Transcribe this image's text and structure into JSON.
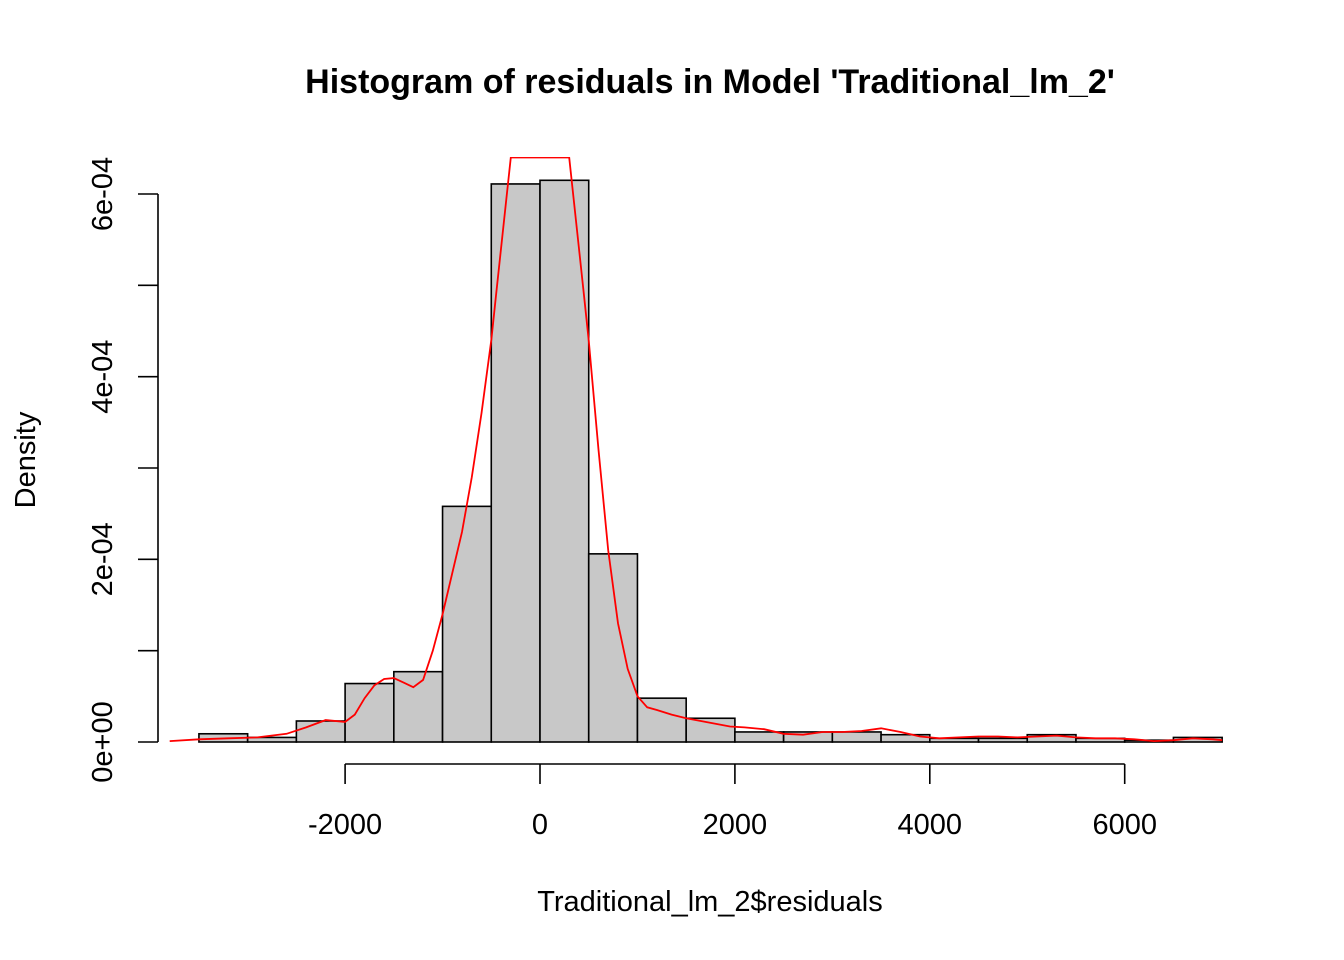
{
  "chart_data": {
    "type": "bar",
    "title": "Histogram of residuals in Model 'Traditional_lm_2'",
    "xlabel": "Traditional_lm_2$residuals",
    "ylabel": "Density",
    "xlim": [
      -3500,
      7000
    ],
    "ylim": [
      0,
      0.00066
    ],
    "x_ticks": [
      -2000,
      0,
      2000,
      4000,
      6000
    ],
    "x_tick_labels": [
      "-2000",
      "0",
      "2000",
      "4000",
      "6000"
    ],
    "y_ticks": [
      0,
      0.0001,
      0.0002,
      0.0003,
      0.0004,
      0.0005,
      0.0006
    ],
    "y_tick_labels": [
      "0e+00",
      "",
      "2e-04",
      "",
      "4e-04",
      "",
      "6e-04"
    ],
    "bin_width": 500,
    "bins": [
      {
        "start": -3500,
        "end": -3000,
        "density": 9e-06
      },
      {
        "start": -3000,
        "end": -2500,
        "density": 5e-06
      },
      {
        "start": -2500,
        "end": -2000,
        "density": 2.3e-05
      },
      {
        "start": -2000,
        "end": -1500,
        "density": 6.4e-05
      },
      {
        "start": -1500,
        "end": -1000,
        "density": 7.7e-05
      },
      {
        "start": -1000,
        "end": -500,
        "density": 0.000258
      },
      {
        "start": -500,
        "end": 0,
        "density": 0.000611
      },
      {
        "start": 0,
        "end": 500,
        "density": 0.000615
      },
      {
        "start": 500,
        "end": 1000,
        "density": 0.000206
      },
      {
        "start": 1000,
        "end": 1500,
        "density": 4.8e-05
      },
      {
        "start": 1500,
        "end": 2000,
        "density": 2.6e-05
      },
      {
        "start": 2000,
        "end": 2500,
        "density": 1.1e-05
      },
      {
        "start": 2500,
        "end": 3000,
        "density": 1.1e-05
      },
      {
        "start": 3000,
        "end": 3500,
        "density": 1.1e-05
      },
      {
        "start": 3500,
        "end": 4000,
        "density": 8e-06
      },
      {
        "start": 4000,
        "end": 4500,
        "density": 4e-06
      },
      {
        "start": 4500,
        "end": 5000,
        "density": 4e-06
      },
      {
        "start": 5000,
        "end": 5500,
        "density": 8e-06
      },
      {
        "start": 5500,
        "end": 6000,
        "density": 4e-06
      },
      {
        "start": 6000,
        "end": 6500,
        "density": 2e-06
      },
      {
        "start": 6500,
        "end": 7000,
        "density": 5e-06
      }
    ],
    "density_curve": {
      "color": "#ff0000",
      "x": [
        -3800,
        -3500,
        -3200,
        -2900,
        -2600,
        -2400,
        -2200,
        -2000,
        -1900,
        -1800,
        -1700,
        -1600,
        -1500,
        -1400,
        -1300,
        -1200,
        -1100,
        -1000,
        -900,
        -800,
        -700,
        -600,
        -500,
        -450,
        -400,
        -350,
        -300,
        300,
        350,
        400,
        450,
        500,
        550,
        600,
        700,
        800,
        900,
        1000,
        1100,
        1200,
        1350,
        1500,
        1650,
        1800,
        1950,
        2100,
        2300,
        2500,
        2700,
        2900,
        3100,
        3300,
        3500,
        3700,
        3900,
        4100,
        4300,
        4500,
        4700,
        4900,
        5100,
        5300,
        5500,
        5700,
        5900,
        6100,
        6300,
        6500,
        6700,
        6900,
        7000
      ],
      "y": [
        1e-06,
        3e-06,
        4e-06,
        5e-06,
        9e-06,
        1.6e-05,
        2.4e-05,
        2.2e-05,
        3e-05,
        4.8e-05,
        6.2e-05,
        6.9e-05,
        7e-05,
        6.5e-05,
        6e-05,
        6.8e-05,
        0.0001,
        0.00014,
        0.000185,
        0.00023,
        0.00029,
        0.00036,
        0.00044,
        0.00049,
        0.00054,
        0.00059,
        0.00064,
        0.00064,
        0.00059,
        0.00054,
        0.00049,
        0.00044,
        0.00038,
        0.00032,
        0.00021,
        0.00013,
        8e-05,
        5e-05,
        3.8e-05,
        3.5e-05,
        3e-05,
        2.6e-05,
        2.3e-05,
        2e-05,
        1.7e-05,
        1.6e-05,
        1.4e-05,
        9e-06,
        8e-06,
        1.1e-05,
        1.1e-05,
        1.2e-05,
        1.5e-05,
        1.1e-05,
        6e-06,
        4e-06,
        5e-06,
        6e-06,
        6e-06,
        5e-06,
        6e-06,
        7e-06,
        5e-06,
        4e-06,
        4e-06,
        3e-06,
        1e-06,
        2e-06,
        4e-06,
        3e-06,
        2e-06
      ]
    }
  }
}
